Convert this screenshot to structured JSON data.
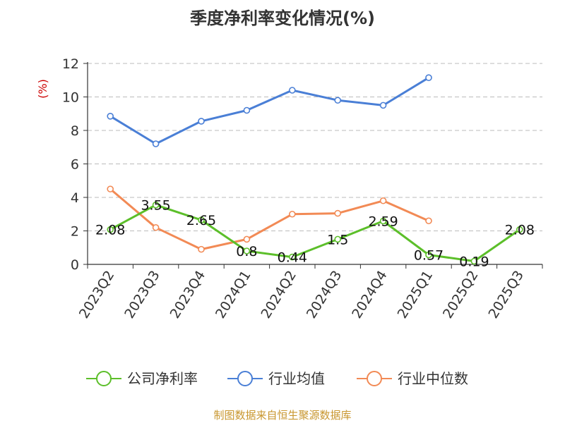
{
  "chart_data": {
    "type": "line",
    "title": "季度净利率变化情况(%)",
    "ylabel": "(%)",
    "ylim": [
      0,
      12
    ],
    "yticks": [
      0,
      2,
      4,
      6,
      8,
      10,
      12
    ],
    "grid": true,
    "legend_position": "bottom",
    "categories": [
      "2023Q2",
      "2023Q3",
      "2023Q4",
      "2024Q1",
      "2024Q2",
      "2024Q3",
      "2024Q4",
      "2025Q1",
      "2025Q2",
      "2025Q3"
    ],
    "series": [
      {
        "name": "公司净利率",
        "color": "#5cbf2a",
        "values": [
          2.08,
          3.55,
          2.65,
          0.8,
          0.44,
          1.5,
          2.59,
          0.57,
          0.19,
          2.08
        ],
        "labels": [
          "2.08",
          "3.55",
          "2.65",
          "0.8",
          "0.44",
          "1.5",
          "2.59",
          "0.57",
          "0.19",
          "2.08"
        ]
      },
      {
        "name": "行业均值",
        "color": "#4a7fd6",
        "values": [
          8.85,
          7.2,
          8.55,
          9.2,
          10.4,
          9.8,
          9.5,
          11.15,
          null,
          null
        ]
      },
      {
        "name": "行业中位数",
        "color": "#f28a55",
        "values": [
          4.5,
          2.2,
          0.9,
          1.5,
          3.0,
          3.05,
          3.8,
          2.6,
          null,
          null
        ]
      }
    ],
    "source": "制图数据来自恒生聚源数据库",
    "source_color": "#c8962e",
    "ylabel_color": "#cc0000"
  }
}
